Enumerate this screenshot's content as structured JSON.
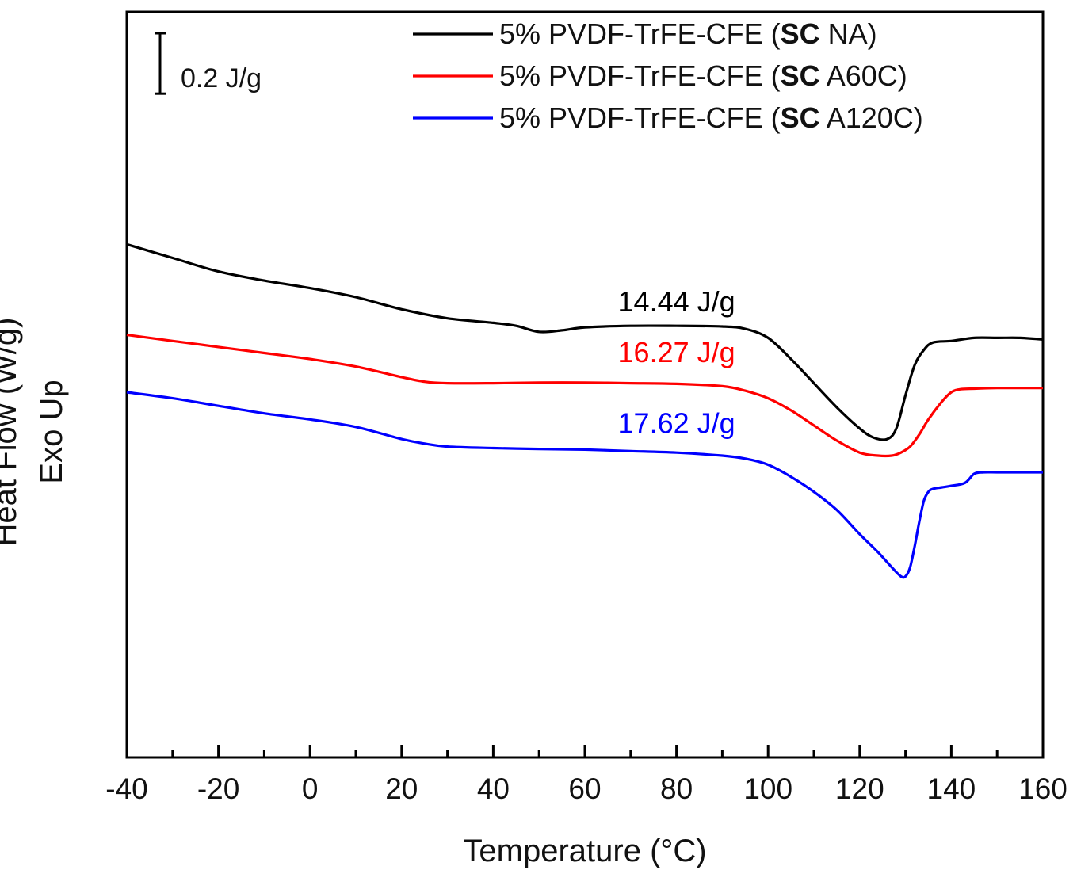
{
  "chart_data": {
    "type": "line",
    "xlabel": "Temperature (°C)",
    "ylabel_lines": [
      "Heat Flow (W/g)",
      "Exo Up"
    ],
    "xlim": [
      -40,
      160
    ],
    "xticks": [
      -40,
      -20,
      0,
      20,
      40,
      60,
      80,
      100,
      120,
      140,
      160
    ],
    "ylim": [
      -1.4,
      1.07
    ],
    "yticks_shown": false,
    "grid": false,
    "legend_position": "top-right",
    "scale_bar": {
      "label": "0.2 J/g",
      "value": 0.2
    },
    "series": [
      {
        "name": "5% PVDF-TrFE-CFE (SC NA)",
        "legend_parts": [
          "5% PVDF-TrFE-CFE (",
          "SC",
          " NA)"
        ],
        "color": "#000000",
        "annotation": {
          "text": "14.44 J/g",
          "x": 80,
          "y": 0.078
        },
        "x": [
          -40,
          -30,
          -20,
          -10,
          0,
          10,
          20,
          30,
          40,
          45,
          50,
          55,
          60,
          70,
          80,
          90,
          95,
          100,
          105,
          110,
          115,
          120,
          123,
          126,
          128,
          130,
          132,
          134,
          136,
          140,
          145,
          150,
          155,
          160
        ],
        "y": [
          0.3,
          0.255,
          0.21,
          0.18,
          0.155,
          0.125,
          0.085,
          0.055,
          0.04,
          0.03,
          0.01,
          0.015,
          0.025,
          0.03,
          0.03,
          0.028,
          0.02,
          -0.01,
          -0.08,
          -0.16,
          -0.24,
          -0.31,
          -0.34,
          -0.345,
          -0.31,
          -0.2,
          -0.1,
          -0.05,
          -0.025,
          -0.02,
          -0.01,
          -0.01,
          -0.01,
          -0.015
        ]
      },
      {
        "name": "5% PVDF-TrFE-CFE (SC A60C)",
        "legend_parts": [
          "5% PVDF-TrFE-CFE (",
          "SC",
          " A60C)"
        ],
        "color": "#ff0000",
        "annotation": {
          "text": "16.27 J/g",
          "x": 80,
          "y": -0.09
        },
        "x": [
          -40,
          -30,
          -20,
          -10,
          0,
          10,
          20,
          25,
          30,
          40,
          50,
          60,
          70,
          80,
          90,
          95,
          100,
          105,
          110,
          115,
          120,
          124,
          127,
          129,
          131,
          133,
          135,
          138,
          140,
          142,
          145,
          150,
          155,
          160
        ],
        "y": [
          0.0,
          -0.02,
          -0.04,
          -0.06,
          -0.08,
          -0.105,
          -0.14,
          -0.155,
          -0.16,
          -0.16,
          -0.158,
          -0.158,
          -0.16,
          -0.162,
          -0.17,
          -0.185,
          -0.21,
          -0.25,
          -0.3,
          -0.35,
          -0.39,
          -0.4,
          -0.4,
          -0.39,
          -0.37,
          -0.33,
          -0.28,
          -0.22,
          -0.19,
          -0.18,
          -0.178,
          -0.176,
          -0.176,
          -0.176
        ]
      },
      {
        "name": "5% PVDF-TrFE-CFE (SC A120C)",
        "legend_parts": [
          "5% PVDF-TrFE-CFE (",
          "SC",
          " A120C)"
        ],
        "color": "#0000ff",
        "annotation": {
          "text": "17.62 J/g",
          "x": 80,
          "y": -0.325
        },
        "x": [
          -40,
          -30,
          -20,
          -10,
          0,
          10,
          20,
          25,
          30,
          40,
          50,
          60,
          70,
          80,
          90,
          95,
          100,
          105,
          110,
          115,
          120,
          124,
          127,
          129,
          130,
          131,
          132,
          133,
          134,
          135,
          136,
          138,
          140,
          143,
          145,
          147,
          150,
          155,
          160
        ],
        "y": [
          -0.19,
          -0.21,
          -0.235,
          -0.26,
          -0.28,
          -0.305,
          -0.345,
          -0.36,
          -0.37,
          -0.375,
          -0.378,
          -0.38,
          -0.385,
          -0.39,
          -0.4,
          -0.41,
          -0.43,
          -0.47,
          -0.52,
          -0.58,
          -0.66,
          -0.72,
          -0.77,
          -0.8,
          -0.8,
          -0.77,
          -0.7,
          -0.62,
          -0.55,
          -0.52,
          -0.51,
          -0.505,
          -0.5,
          -0.49,
          -0.46,
          -0.455,
          -0.455,
          -0.455,
          -0.455
        ]
      }
    ]
  }
}
